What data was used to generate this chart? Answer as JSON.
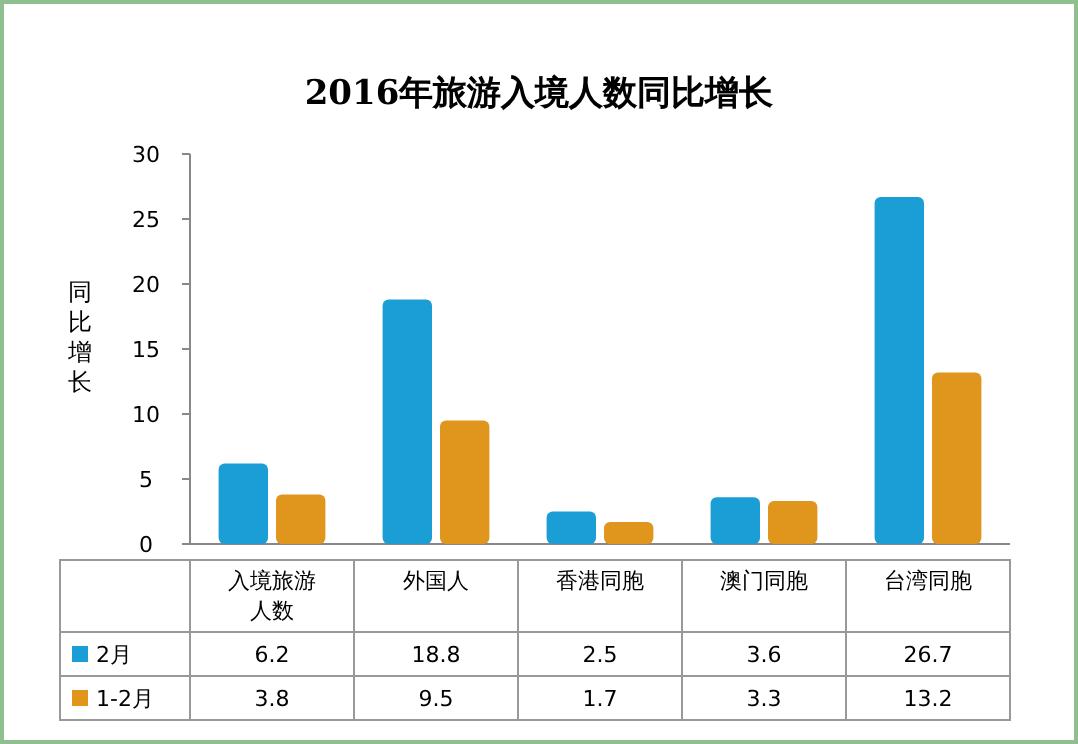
{
  "chart_data": {
    "type": "bar",
    "title": "2016年旅游入境人数同比增长",
    "ylabel": "同比增长",
    "categories": [
      "入境旅游人数",
      "外国人",
      "香港同胞",
      "澳门同胞",
      "台湾同胞"
    ],
    "series": [
      {
        "name": "2月",
        "color": "#1b9ed6",
        "values": [
          6.2,
          18.8,
          2.5,
          3.6,
          26.7
        ]
      },
      {
        "name": "1-2月",
        "color": "#e0951c",
        "values": [
          3.8,
          9.5,
          1.7,
          3.3,
          13.2
        ]
      }
    ],
    "ylim": [
      0,
      30
    ],
    "yticks": [
      0,
      5,
      10,
      15,
      20,
      25,
      30
    ],
    "grid": false,
    "legend": "bottom",
    "data_labels": true
  }
}
